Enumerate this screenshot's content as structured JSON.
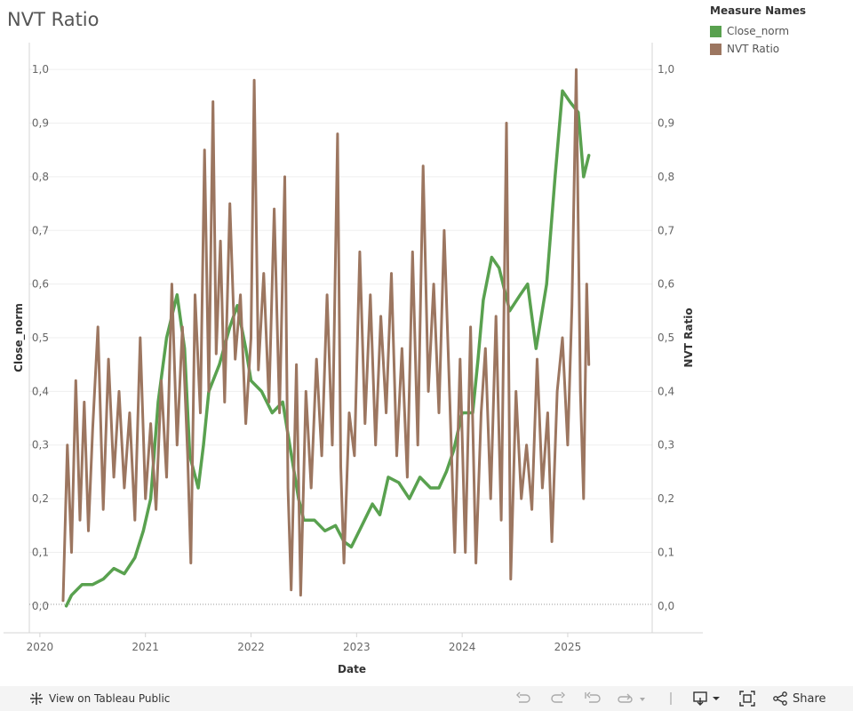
{
  "title": "NVT Ratio",
  "legend": {
    "title": "Measure Names",
    "items": [
      {
        "label": "Close_norm",
        "color": "#59a14f"
      },
      {
        "label": "NVT Ratio",
        "color": "#9c7660"
      }
    ]
  },
  "toolbar": {
    "view_label": "View on Tableau Public",
    "share_label": "Share",
    "icons": [
      "tableau-logo-icon",
      "undo-icon",
      "redo-icon",
      "revert-icon",
      "refresh-icon",
      "download-icon",
      "fullscreen-icon",
      "share-icon"
    ]
  },
  "chart_data": {
    "type": "line",
    "title": "NVT Ratio",
    "xlabel": "Date",
    "ylabel_left": "Close_norm",
    "ylabel_right": "NVT Ratio",
    "x_range": [
      2019.9,
      2025.8
    ],
    "x_ticks": [
      2020,
      2021,
      2022,
      2023,
      2024,
      2025
    ],
    "x_tick_labels": [
      "2020",
      "2021",
      "2022",
      "2023",
      "2024",
      "2025"
    ],
    "ylim": [
      -0.05,
      1.05
    ],
    "y_ticks": [
      0,
      0.1,
      0.2,
      0.3,
      0.4,
      0.5,
      0.6,
      0.7,
      0.8,
      0.9,
      1.0
    ],
    "y_tick_labels": [
      "0,0",
      "0,1",
      "0,2",
      "0,3",
      "0,4",
      "0,5",
      "0,6",
      "0,7",
      "0,8",
      "0,9",
      "1,0"
    ],
    "grid": true,
    "series": [
      {
        "name": "Close_norm",
        "color": "#59a14f",
        "points": [
          [
            2020.25,
            0.0
          ],
          [
            2020.3,
            0.02
          ],
          [
            2020.4,
            0.04
          ],
          [
            2020.5,
            0.04
          ],
          [
            2020.6,
            0.05
          ],
          [
            2020.7,
            0.07
          ],
          [
            2020.8,
            0.06
          ],
          [
            2020.9,
            0.09
          ],
          [
            2020.98,
            0.14
          ],
          [
            2021.05,
            0.2
          ],
          [
            2021.12,
            0.38
          ],
          [
            2021.2,
            0.5
          ],
          [
            2021.3,
            0.58
          ],
          [
            2021.37,
            0.48
          ],
          [
            2021.42,
            0.28
          ],
          [
            2021.5,
            0.22
          ],
          [
            2021.55,
            0.3
          ],
          [
            2021.6,
            0.4
          ],
          [
            2021.7,
            0.45
          ],
          [
            2021.8,
            0.52
          ],
          [
            2021.87,
            0.56
          ],
          [
            2021.95,
            0.48
          ],
          [
            2022.0,
            0.42
          ],
          [
            2022.1,
            0.4
          ],
          [
            2022.2,
            0.36
          ],
          [
            2022.3,
            0.38
          ],
          [
            2022.35,
            0.32
          ],
          [
            2022.45,
            0.2
          ],
          [
            2022.5,
            0.16
          ],
          [
            2022.6,
            0.16
          ],
          [
            2022.7,
            0.14
          ],
          [
            2022.8,
            0.15
          ],
          [
            2022.88,
            0.12
          ],
          [
            2022.95,
            0.11
          ],
          [
            2023.05,
            0.15
          ],
          [
            2023.15,
            0.19
          ],
          [
            2023.22,
            0.17
          ],
          [
            2023.3,
            0.24
          ],
          [
            2023.4,
            0.23
          ],
          [
            2023.5,
            0.2
          ],
          [
            2023.6,
            0.24
          ],
          [
            2023.7,
            0.22
          ],
          [
            2023.78,
            0.22
          ],
          [
            2023.85,
            0.25
          ],
          [
            2023.92,
            0.29
          ],
          [
            2024.0,
            0.36
          ],
          [
            2024.1,
            0.36
          ],
          [
            2024.15,
            0.46
          ],
          [
            2024.2,
            0.57
          ],
          [
            2024.28,
            0.65
          ],
          [
            2024.35,
            0.63
          ],
          [
            2024.45,
            0.55
          ],
          [
            2024.55,
            0.58
          ],
          [
            2024.62,
            0.6
          ],
          [
            2024.7,
            0.48
          ],
          [
            2024.8,
            0.6
          ],
          [
            2024.88,
            0.8
          ],
          [
            2024.95,
            0.96
          ],
          [
            2025.02,
            0.94
          ],
          [
            2025.1,
            0.92
          ],
          [
            2025.15,
            0.8
          ],
          [
            2025.2,
            0.84
          ]
        ]
      },
      {
        "name": "NVT Ratio",
        "color": "#9c7660",
        "points": [
          [
            2020.22,
            0.01
          ],
          [
            2020.26,
            0.3
          ],
          [
            2020.3,
            0.1
          ],
          [
            2020.34,
            0.42
          ],
          [
            2020.38,
            0.16
          ],
          [
            2020.42,
            0.38
          ],
          [
            2020.46,
            0.14
          ],
          [
            2020.5,
            0.33
          ],
          [
            2020.55,
            0.52
          ],
          [
            2020.6,
            0.18
          ],
          [
            2020.65,
            0.46
          ],
          [
            2020.7,
            0.24
          ],
          [
            2020.75,
            0.4
          ],
          [
            2020.8,
            0.22
          ],
          [
            2020.85,
            0.36
          ],
          [
            2020.9,
            0.16
          ],
          [
            2020.95,
            0.5
          ],
          [
            2021.0,
            0.2
          ],
          [
            2021.05,
            0.34
          ],
          [
            2021.1,
            0.18
          ],
          [
            2021.15,
            0.42
          ],
          [
            2021.2,
            0.24
          ],
          [
            2021.25,
            0.6
          ],
          [
            2021.3,
            0.3
          ],
          [
            2021.35,
            0.52
          ],
          [
            2021.4,
            0.28
          ],
          [
            2021.43,
            0.08
          ],
          [
            2021.47,
            0.58
          ],
          [
            2021.52,
            0.36
          ],
          [
            2021.56,
            0.85
          ],
          [
            2021.6,
            0.4
          ],
          [
            2021.64,
            0.94
          ],
          [
            2021.67,
            0.47
          ],
          [
            2021.71,
            0.68
          ],
          [
            2021.75,
            0.38
          ],
          [
            2021.8,
            0.75
          ],
          [
            2021.85,
            0.46
          ],
          [
            2021.9,
            0.58
          ],
          [
            2021.95,
            0.34
          ],
          [
            2022.0,
            0.5
          ],
          [
            2022.03,
            0.98
          ],
          [
            2022.07,
            0.44
          ],
          [
            2022.12,
            0.62
          ],
          [
            2022.17,
            0.38
          ],
          [
            2022.22,
            0.74
          ],
          [
            2022.27,
            0.36
          ],
          [
            2022.32,
            0.8
          ],
          [
            2022.35,
            0.22
          ],
          [
            2022.38,
            0.03
          ],
          [
            2022.43,
            0.45
          ],
          [
            2022.47,
            0.02
          ],
          [
            2022.52,
            0.4
          ],
          [
            2022.57,
            0.22
          ],
          [
            2022.62,
            0.46
          ],
          [
            2022.67,
            0.28
          ],
          [
            2022.72,
            0.58
          ],
          [
            2022.77,
            0.3
          ],
          [
            2022.82,
            0.88
          ],
          [
            2022.85,
            0.26
          ],
          [
            2022.88,
            0.08
          ],
          [
            2022.93,
            0.36
          ],
          [
            2022.98,
            0.28
          ],
          [
            2023.03,
            0.66
          ],
          [
            2023.08,
            0.34
          ],
          [
            2023.13,
            0.58
          ],
          [
            2023.18,
            0.3
          ],
          [
            2023.23,
            0.54
          ],
          [
            2023.28,
            0.36
          ],
          [
            2023.33,
            0.62
          ],
          [
            2023.38,
            0.28
          ],
          [
            2023.43,
            0.48
          ],
          [
            2023.48,
            0.24
          ],
          [
            2023.53,
            0.66
          ],
          [
            2023.58,
            0.3
          ],
          [
            2023.63,
            0.82
          ],
          [
            2023.68,
            0.4
          ],
          [
            2023.73,
            0.6
          ],
          [
            2023.78,
            0.36
          ],
          [
            2023.83,
            0.7
          ],
          [
            2023.88,
            0.4
          ],
          [
            2023.93,
            0.1
          ],
          [
            2023.98,
            0.46
          ],
          [
            2024.03,
            0.1
          ],
          [
            2024.08,
            0.52
          ],
          [
            2024.13,
            0.08
          ],
          [
            2024.18,
            0.36
          ],
          [
            2024.22,
            0.48
          ],
          [
            2024.27,
            0.2
          ],
          [
            2024.32,
            0.54
          ],
          [
            2024.37,
            0.16
          ],
          [
            2024.42,
            0.9
          ],
          [
            2024.46,
            0.05
          ],
          [
            2024.51,
            0.4
          ],
          [
            2024.56,
            0.2
          ],
          [
            2024.61,
            0.3
          ],
          [
            2024.66,
            0.18
          ],
          [
            2024.71,
            0.46
          ],
          [
            2024.76,
            0.22
          ],
          [
            2024.81,
            0.36
          ],
          [
            2024.85,
            0.12
          ],
          [
            2024.9,
            0.4
          ],
          [
            2024.95,
            0.5
          ],
          [
            2025.0,
            0.3
          ],
          [
            2025.04,
            0.56
          ],
          [
            2025.08,
            1.0
          ],
          [
            2025.12,
            0.4
          ],
          [
            2025.15,
            0.2
          ],
          [
            2025.18,
            0.6
          ],
          [
            2025.2,
            0.45
          ]
        ]
      }
    ]
  }
}
